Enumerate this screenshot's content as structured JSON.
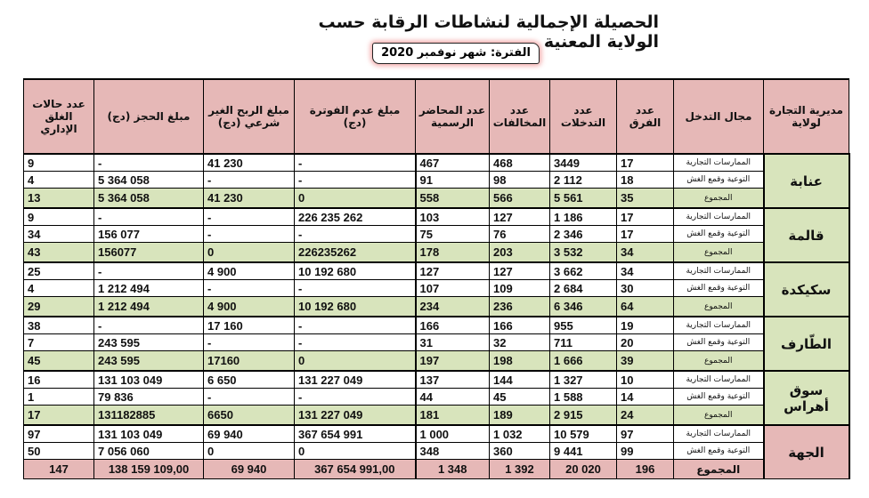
{
  "title": "الحصيلة الإجمالية لنشاطات الرقابة حسب الولاية المعنية",
  "period": "الفترة: شهر نوفمبر 2020",
  "headers": [
    "مديرية التجارة لولاية",
    "مجال التدخل",
    "عدد الفرق",
    "عدد التدخلات",
    "عدد المخالفات",
    "عدد المحاضر الرسمية",
    "مبلغ عدم الفوترة (دج)",
    "مبلغ الربح الغير شرعي (دج)",
    "مبلغ الحجز (دج)",
    "عدد حالات الغلق الإداري"
  ],
  "groups": [
    {
      "name": "عنابة",
      "rows": [
        {
          "domain": "الممارسات التجارية",
          "values": [
            "17",
            "3449",
            "468",
            "467",
            "-",
            "41 230",
            "-",
            "9"
          ]
        },
        {
          "domain": "التوعية وقمع الغش",
          "values": [
            "18",
            "2 112",
            "98",
            "91",
            "-",
            "-",
            "5 364 058",
            "4"
          ]
        },
        {
          "domain": "المجموع",
          "values": [
            "35",
            "5 561",
            "566",
            "558",
            "0",
            "41 230",
            "5 364 058",
            "13"
          ]
        }
      ]
    },
    {
      "name": "قالمة",
      "rows": [
        {
          "domain": "الممارسات التجارية",
          "values": [
            "17",
            "1 186",
            "127",
            "103",
            "226 235 262",
            "-",
            "-",
            "9"
          ]
        },
        {
          "domain": "التوعية وقمع الغش",
          "values": [
            "17",
            "2 346",
            "76",
            "75",
            "-",
            "-",
            "156 077",
            "34"
          ]
        },
        {
          "domain": "المجموع",
          "values": [
            "34",
            "3 532",
            "203",
            "178",
            "226235262",
            "0",
            "156077",
            "43"
          ]
        }
      ]
    },
    {
      "name": "سكيكدة",
      "rows": [
        {
          "domain": "الممارسات التجارية",
          "values": [
            "34",
            "3 662",
            "127",
            "127",
            "10 192 680",
            "4 900",
            "-",
            "25"
          ]
        },
        {
          "domain": "التوعية وقمع الغش",
          "values": [
            "30",
            "2 684",
            "109",
            "107",
            "-",
            "-",
            "1 212 494",
            "4"
          ]
        },
        {
          "domain": "المجموع",
          "values": [
            "64",
            "6 346",
            "236",
            "234",
            "10 192 680",
            "4 900",
            "1 212 494",
            "29"
          ]
        }
      ]
    },
    {
      "name": "الطّارف",
      "rows": [
        {
          "domain": "الممارسات التجارية",
          "values": [
            "19",
            "955",
            "166",
            "166",
            "-",
            "17 160",
            "-",
            "38"
          ]
        },
        {
          "domain": "التوعية وقمع الغش",
          "values": [
            "20",
            "711",
            "32",
            "31",
            "-",
            "-",
            "243 595",
            "7"
          ]
        },
        {
          "domain": "المجموع",
          "values": [
            "39",
            "1 666",
            "198",
            "197",
            "0",
            "17160",
            "243 595",
            "45"
          ]
        }
      ]
    },
    {
      "name": "سوق أهراس",
      "rows": [
        {
          "domain": "الممارسات التجارية",
          "values": [
            "10",
            "1 327",
            "144",
            "137",
            "131 227 049",
            "6 650",
            "131 103 049",
            "16"
          ]
        },
        {
          "domain": "التوعية وقمع الغش",
          "values": [
            "14",
            "1 588",
            "45",
            "44",
            "-",
            "-",
            "79 836",
            "1"
          ]
        },
        {
          "domain": "المجموع",
          "values": [
            "24",
            "2 915",
            "189",
            "181",
            "131 227 049",
            "6650",
            "131182885",
            "17"
          ]
        }
      ]
    },
    {
      "name": "الجهة",
      "grand": true,
      "rows": [
        {
          "domain": "الممارسات التجارية",
          "values": [
            "97",
            "10 579",
            "1 032",
            "1 000",
            "367 654 991",
            "69 940",
            "131 103 049",
            "97"
          ]
        },
        {
          "domain": "التوعية وقمع الغش",
          "values": [
            "99",
            "9 441",
            "360",
            "348",
            "0",
            "0",
            "7 056 060",
            "50"
          ]
        },
        {
          "domain": "المجموع",
          "values": [
            "196",
            "20 020",
            "1 392",
            "1 348",
            "367 654 991,00",
            "69 940",
            "138 159 109,00",
            "147"
          ]
        }
      ]
    }
  ],
  "colors": {
    "header": "#e6b8b7",
    "total": "#d8e4bc"
  }
}
